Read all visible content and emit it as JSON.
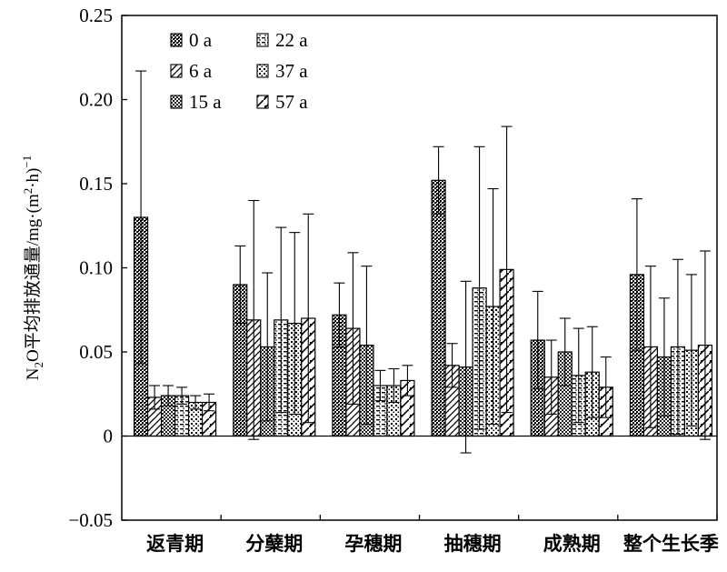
{
  "chart_data": {
    "type": "bar",
    "ylabel": "N2O平均排放通量/mg·(m2·h)-1",
    "ylabel_parts": {
      "n": "N",
      "sub2": "2",
      "rest": "O平均排放通量/mg·(m",
      "sup2": "2",
      "mid": "·h)",
      "supneg1": "−1"
    },
    "ylim": [
      -0.05,
      0.25
    ],
    "yticks": [
      -0.05,
      0,
      0.05,
      0.1,
      0.15,
      0.2,
      0.25
    ],
    "ytick_labels": [
      "−0.05",
      "0",
      "0.05",
      "0.10",
      "0.15",
      "0.20",
      "0.25"
    ],
    "categories": [
      "返青期",
      "分蘖期",
      "孕穗期",
      "抽穗期",
      "成熟期",
      "整个生长季"
    ],
    "legend_position": "top-left",
    "series": [
      {
        "name": "0 a",
        "pattern": "dense-dots",
        "values": [
          0.13,
          0.09,
          0.072,
          0.152,
          0.057,
          0.096
        ],
        "errors": [
          0.087,
          0.023,
          0.019,
          0.02,
          0.029,
          0.045
        ]
      },
      {
        "name": "6 a",
        "pattern": "diagonal",
        "values": [
          0.023,
          0.069,
          0.064,
          0.042,
          0.035,
          0.053
        ],
        "errors": [
          0.007,
          0.071,
          0.045,
          0.013,
          0.022,
          0.048
        ]
      },
      {
        "name": "15 a",
        "pattern": "checker",
        "values": [
          0.024,
          0.053,
          0.054,
          0.041,
          0.05,
          0.047
        ],
        "errors": [
          0.006,
          0.044,
          0.047,
          0.051,
          0.02,
          0.035
        ]
      },
      {
        "name": "22 a",
        "pattern": "horizontal-dots",
        "values": [
          0.024,
          0.069,
          0.03,
          0.088,
          0.036,
          0.053
        ],
        "errors": [
          0.005,
          0.055,
          0.009,
          0.084,
          0.028,
          0.052
        ]
      },
      {
        "name": "37 a",
        "pattern": "light-dots",
        "values": [
          0.02,
          0.067,
          0.03,
          0.077,
          0.038,
          0.051
        ],
        "errors": [
          0.004,
          0.054,
          0.01,
          0.07,
          0.027,
          0.045
        ]
      },
      {
        "name": "57 a",
        "pattern": "wide-diagonal",
        "values": [
          0.02,
          0.07,
          0.033,
          0.099,
          0.029,
          0.054
        ],
        "errors": [
          0.005,
          0.062,
          0.009,
          0.085,
          0.018,
          0.056
        ]
      }
    ]
  }
}
